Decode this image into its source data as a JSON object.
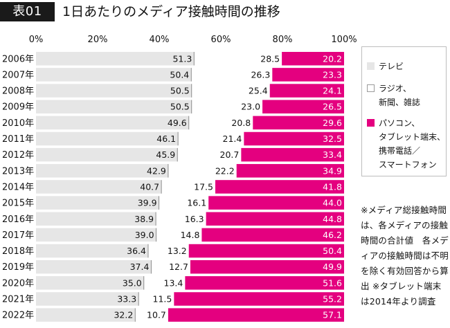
{
  "header": {
    "badge": "表01",
    "title": "1日あたりのメディア接触時間の推移"
  },
  "legend": {
    "items": [
      {
        "label": "テレビ",
        "color": "#e6e6e6"
      },
      {
        "label": "ラジオ、\n新聞、雑誌",
        "color": "#ffffff"
      },
      {
        "label": "パソコン、\nタブレット端末、\n携帯電話／\nスマートフォン",
        "color": "#e4007f"
      }
    ]
  },
  "note": "※メディア総接触時間は、各メディアの接触時間の合計値　各メディアの接触時間は不明を除く有効回答から算出\n※タブレット端末は2014年より調査",
  "chart_data": {
    "type": "bar",
    "orientation": "horizontal",
    "stacked": true,
    "percent_stacked": true,
    "x_ticks": [
      "0%",
      "20%",
      "40%",
      "60%",
      "80%",
      "100%"
    ],
    "xlim": [
      0,
      100
    ],
    "categories": [
      "2006年",
      "2007年",
      "2008年",
      "2009年",
      "2010年",
      "2011年",
      "2012年",
      "2013年",
      "2014年",
      "2015年",
      "2016年",
      "2017年",
      "2018年",
      "2019年",
      "2020年",
      "2021年",
      "2022年"
    ],
    "series": [
      {
        "name": "テレビ",
        "color": "#e6e6e6",
        "label_color": "#111111",
        "values": [
          51.3,
          50.4,
          50.5,
          50.5,
          49.6,
          46.1,
          45.9,
          42.9,
          40.7,
          39.9,
          38.9,
          39.0,
          36.4,
          37.4,
          35.0,
          33.3,
          32.2
        ]
      },
      {
        "name": "ラジオ、新聞、雑誌",
        "color": "#ffffff",
        "label_color": "#111111",
        "values": [
          28.5,
          26.3,
          25.4,
          23.0,
          20.8,
          21.4,
          20.7,
          22.2,
          17.5,
          16.1,
          16.3,
          14.8,
          13.2,
          12.7,
          13.4,
          11.5,
          10.7
        ]
      },
      {
        "name": "パソコン、タブレット端末、携帯電話／スマートフォン",
        "color": "#e4007f",
        "label_color": "#ffffff",
        "values": [
          20.2,
          23.3,
          24.1,
          26.5,
          29.6,
          32.5,
          33.4,
          34.9,
          41.8,
          44.0,
          44.8,
          46.2,
          50.4,
          49.9,
          51.6,
          55.2,
          57.1
        ]
      }
    ],
    "legend_position": "right",
    "grid": false
  }
}
